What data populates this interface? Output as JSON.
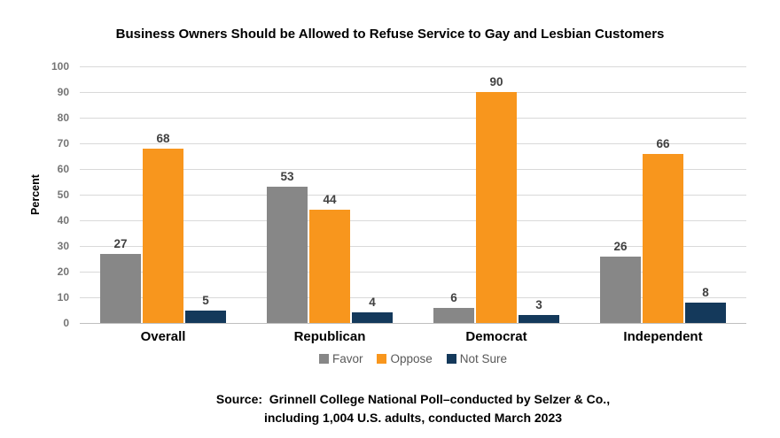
{
  "chart_data": {
    "type": "bar",
    "title": "Business Owners Should be Allowed to Refuse Service to Gay and Lesbian Customers",
    "xlabel": "",
    "ylabel": "Percent",
    "ylim": [
      0,
      100
    ],
    "ytick_step": 10,
    "grid": true,
    "legend_position": "bottom",
    "categories": [
      "Overall",
      "Republican",
      "Democrat",
      "Independent"
    ],
    "series": [
      {
        "name": "Favor",
        "color": "#878787",
        "values": [
          27,
          53,
          6,
          26
        ]
      },
      {
        "name": "Oppose",
        "color": "#F8961D",
        "values": [
          68,
          44,
          90,
          66
        ]
      },
      {
        "name": "Not Sure",
        "color": "#14395B",
        "values": [
          5,
          4,
          3,
          8
        ]
      }
    ]
  },
  "source": {
    "line1": "Source:  Grinnell College National Poll–conducted by Selzer & Co.,",
    "line2": "including 1,004 U.S. adults, conducted March 2023"
  }
}
